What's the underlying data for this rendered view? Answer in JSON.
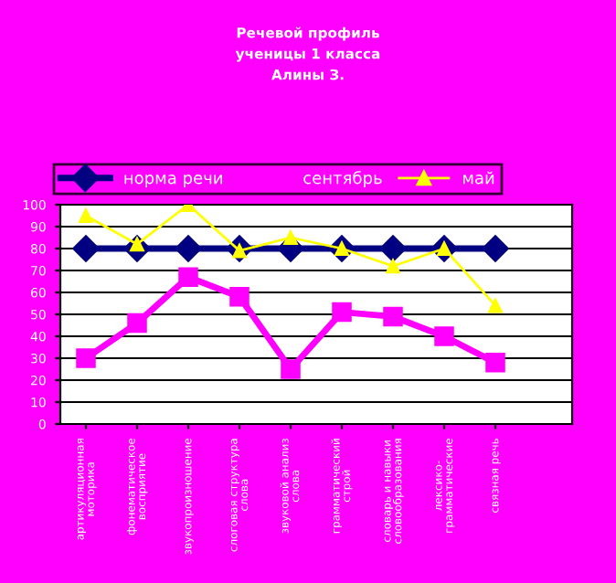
{
  "chart_data": {
    "type": "line",
    "title": "Речевой профиль\nученицы 1 класса\nАлины З.",
    "categories": [
      "артикуляционная\nмоторика",
      "фонематическое\nвосприятие",
      "звукопроизношение",
      "слоговая структура\nслова",
      "звуковой анализ\nслова",
      "грамматический\nстрой",
      "словарь и навыки\nсловообразования",
      "лексико-\nграмматические",
      "связная речь"
    ],
    "series": [
      {
        "name": "норма речи",
        "color": "#000080",
        "marker": "diamond",
        "values": [
          80,
          80,
          80,
          80,
          80,
          80,
          80,
          80,
          80
        ]
      },
      {
        "name": "сентябрь",
        "color": "#ff00ff",
        "marker": "square",
        "values": [
          30,
          46,
          67,
          58,
          25,
          51,
          49,
          40,
          28
        ]
      },
      {
        "name": "май",
        "color": "#ffff00",
        "marker": "triangle",
        "values": [
          95,
          82,
          100,
          79,
          85,
          80,
          72,
          80,
          54
        ]
      }
    ],
    "ylim": [
      0,
      100
    ],
    "yticks": [
      0,
      10,
      20,
      30,
      40,
      50,
      60,
      70,
      80,
      90,
      100
    ],
    "grid": "y",
    "legend": "top",
    "line_style": "solid"
  }
}
